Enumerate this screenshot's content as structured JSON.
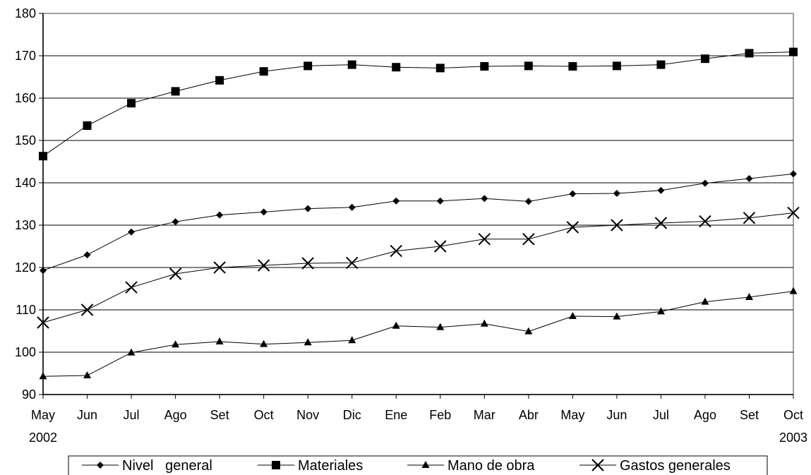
{
  "chart_data": {
    "type": "line",
    "categories": [
      "May",
      "Jun",
      "Jul",
      "Ago",
      "Set",
      "Oct",
      "Nov",
      "Dic",
      "Ene",
      "Feb",
      "Mar",
      "Abr",
      "May",
      "Jun",
      "Jul",
      "Ago",
      "Set",
      "Oct"
    ],
    "year_labels": [
      {
        "index": 0,
        "label": "2002"
      },
      {
        "index": 17,
        "label": "2003"
      }
    ],
    "ylim": [
      90,
      180
    ],
    "yticks": [
      90,
      100,
      110,
      120,
      130,
      140,
      150,
      160,
      170,
      180
    ],
    "grid": true,
    "legend_position": "bottom",
    "series": [
      {
        "name": "Nivel   general",
        "marker": "diamond",
        "values": [
          119.3,
          123.0,
          128.4,
          130.8,
          132.4,
          133.1,
          133.9,
          134.2,
          135.7,
          135.7,
          136.3,
          135.6,
          137.4,
          137.5,
          138.2,
          139.9,
          141.0,
          142.1
        ]
      },
      {
        "name": "Materiales",
        "marker": "square",
        "values": [
          146.3,
          153.5,
          158.8,
          161.6,
          164.2,
          166.3,
          167.6,
          167.9,
          167.3,
          167.1,
          167.5,
          167.6,
          167.5,
          167.6,
          167.9,
          169.3,
          170.6,
          170.9
        ]
      },
      {
        "name": "Mano de obra",
        "marker": "triangle",
        "values": [
          94.3,
          94.5,
          99.9,
          101.8,
          102.5,
          101.9,
          102.3,
          102.8,
          106.2,
          105.9,
          106.7,
          104.9,
          108.5,
          108.4,
          109.6,
          111.9,
          113.0,
          114.4
        ]
      },
      {
        "name": "Gastos generales",
        "marker": "x",
        "values": [
          107.0,
          110.0,
          115.3,
          118.5,
          120.0,
          120.5,
          121.0,
          121.1,
          123.9,
          125.0,
          126.7,
          126.7,
          129.5,
          130.0,
          130.5,
          130.9,
          131.7,
          132.9
        ]
      }
    ]
  }
}
